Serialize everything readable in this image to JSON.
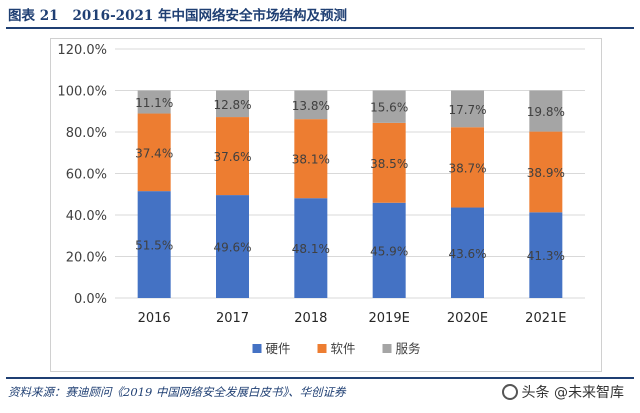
{
  "header": {
    "figure_label": "图表 21",
    "title": "2016-2021 年中国网络安全市场结构及预测"
  },
  "chart_data": {
    "type": "bar",
    "stacked": true,
    "categories": [
      "2016",
      "2017",
      "2018",
      "2019E",
      "2020E",
      "2021E"
    ],
    "series": [
      {
        "name": "硬件",
        "color": "#4472c4",
        "values": [
          51.5,
          49.6,
          48.1,
          45.9,
          43.6,
          41.3
        ],
        "labels": [
          "51.5%",
          "49.6%",
          "48.1%",
          "45.9%",
          "43.6%",
          "41.3%"
        ]
      },
      {
        "name": "软件",
        "color": "#ed7d31",
        "values": [
          37.4,
          37.6,
          38.1,
          38.5,
          38.7,
          38.9
        ],
        "labels": [
          "37.4%",
          "37.6%",
          "38.1%",
          "38.5%",
          "38.7%",
          "38.9%"
        ]
      },
      {
        "name": "服务",
        "color": "#a5a5a5",
        "values": [
          11.1,
          12.8,
          13.8,
          15.6,
          17.7,
          19.8
        ],
        "labels": [
          "11.1%",
          "12.8%",
          "13.8%",
          "15.6%",
          "17.7%",
          "19.8%"
        ]
      }
    ],
    "ylim": [
      0,
      120
    ],
    "yticks": [
      0,
      20,
      40,
      60,
      80,
      100,
      120
    ],
    "ytick_labels": [
      "0.0%",
      "20.0%",
      "40.0%",
      "60.0%",
      "80.0%",
      "100.0%",
      "120.0%"
    ],
    "grid": true,
    "legend_position": "bottom"
  },
  "source": "资料来源：赛迪顾问《2019 中国网络安全发展白皮书》、华创证券",
  "watermark": "头条 @未来智库"
}
